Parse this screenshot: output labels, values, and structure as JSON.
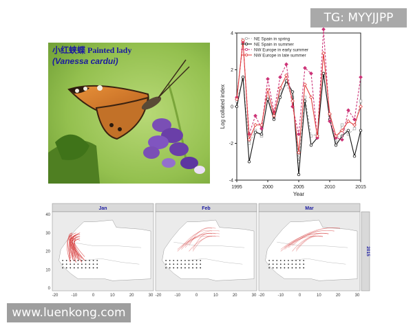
{
  "badge": {
    "text": "TG: MYYJJPP"
  },
  "watermark": {
    "text": "www.luenkong.com"
  },
  "photo": {
    "title": "小红蛱蝶 Painted lady",
    "subtitle": "(Vanessa cardui)"
  },
  "chart_data": [
    {
      "type": "line",
      "xlabel": "Year",
      "ylabel": "Log collated index",
      "xlim": [
        1995,
        2015
      ],
      "ylim": [
        -4,
        4
      ],
      "xticks": [
        1995,
        2000,
        2005,
        2010,
        2015
      ],
      "yticks": [
        -4,
        -2,
        0,
        2,
        4
      ],
      "legend_position": "top-left",
      "x": [
        1995,
        1996,
        1997,
        1998,
        1999,
        2000,
        2001,
        2002,
        2003,
        2004,
        2005,
        2006,
        2007,
        2008,
        2009,
        2010,
        2011,
        2012,
        2013,
        2014,
        2015
      ],
      "series": [
        {
          "name": "NE Spain in spring",
          "color": "#aaaaaa",
          "dashed": true,
          "marker": "square",
          "values": [
            0.3,
            1.5,
            -2.0,
            -1.3,
            -1.6,
            0.5,
            -0.6,
            0.8,
            1.2,
            0.5,
            -3.0,
            0.5,
            -1.6,
            -1.5,
            1.7,
            -0.5,
            -2.0,
            -1.0,
            -1.5,
            -1.2,
            0.3
          ]
        },
        {
          "name": "NE Spain in summer",
          "color": "#111111",
          "dashed": false,
          "marker": "circle",
          "values": [
            0.0,
            1.6,
            -3.0,
            -1.4,
            -1.5,
            0.4,
            -0.7,
            0.5,
            1.4,
            0.8,
            -3.7,
            0.3,
            -2.1,
            -1.7,
            1.8,
            -0.7,
            -2.1,
            -1.6,
            -1.3,
            -2.7,
            -1.3
          ]
        },
        {
          "name": "NW Europe in early summer",
          "color": "#cc3377",
          "dashed": true,
          "marker": "diamond",
          "values": [
            0.5,
            3.5,
            -1.5,
            -0.5,
            -1.2,
            1.5,
            -0.3,
            1.6,
            2.3,
            0.0,
            -1.5,
            2.1,
            1.8,
            -1.7,
            4.2,
            -0.8,
            -1.7,
            -1.8,
            -0.2,
            -0.7,
            1.6
          ]
        },
        {
          "name": "NW Europe in late summer",
          "color": "#e03a3a",
          "dashed": false,
          "marker": "diamond-open",
          "values": [
            0.4,
            3.6,
            -1.8,
            -1.0,
            -1.0,
            0.9,
            -0.5,
            1.0,
            1.7,
            0.3,
            -2.5,
            1.2,
            0.5,
            -1.6,
            2.9,
            -0.4,
            -1.6,
            -1.3,
            -0.8,
            -1.0,
            0.0
          ]
        }
      ]
    },
    {
      "type": "scatter",
      "panels": [
        {
          "label": "Jan"
        },
        {
          "label": "Feb"
        },
        {
          "label": "Mar"
        }
      ],
      "strip_label": "2015",
      "xlim": [
        -20,
        30
      ],
      "ylim": [
        0,
        40
      ],
      "xticks": [
        -20,
        -10,
        0,
        10,
        20,
        30
      ],
      "yticks": [
        0,
        10,
        20,
        30,
        40
      ],
      "grid_points_lon": [
        -16,
        -14,
        -12,
        -10,
        -8,
        -6,
        -4,
        -2,
        0,
        2
      ],
      "grid_points_lat": [
        11,
        13,
        15
      ],
      "trajectory_color": "#d63a3a"
    }
  ]
}
